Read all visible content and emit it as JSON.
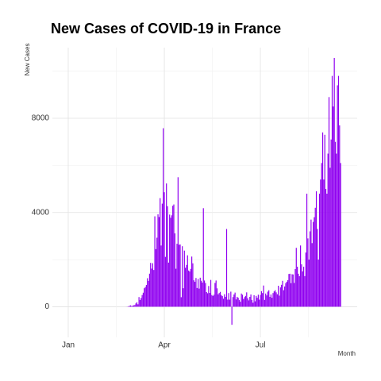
{
  "chart_data": {
    "type": "bar",
    "title": "New Cases of COVID-19 in France",
    "y_label": "New Cases",
    "x_label": "Month",
    "color": "#9000f0",
    "grid": true,
    "ylim": [
      -1300,
      11000
    ],
    "yticks": [
      0,
      4000,
      8000
    ],
    "categories": [
      "Jan",
      null,
      null,
      null,
      null,
      null,
      null,
      null,
      null,
      null,
      null,
      null,
      null,
      null,
      null,
      null,
      null,
      null,
      null,
      null,
      null,
      null,
      null,
      null,
      null,
      null,
      null,
      null,
      null,
      null,
      null,
      null,
      null,
      null,
      null,
      null,
      null,
      null,
      null,
      null,
      null,
      null,
      null,
      null,
      null,
      null,
      null,
      null,
      null,
      null,
      null,
      null,
      null,
      null,
      null,
      null,
      null,
      null,
      null,
      null,
      null,
      null,
      null,
      null,
      null,
      null,
      null,
      null,
      null,
      null,
      null,
      null,
      null,
      null,
      null,
      null,
      null,
      null,
      null,
      null,
      null,
      null,
      null,
      null,
      null,
      null,
      null,
      null,
      null,
      null,
      null,
      "Apr",
      null,
      null,
      null,
      null,
      null,
      null,
      null,
      null,
      null,
      null,
      null,
      null,
      null,
      null,
      null,
      null,
      null,
      null,
      null,
      null,
      null,
      null,
      null,
      null,
      null,
      null,
      null,
      null,
      null,
      null,
      null,
      null,
      null,
      null,
      null,
      null,
      null,
      null,
      null,
      null,
      null,
      null,
      null,
      null,
      null,
      null,
      null,
      null,
      null,
      null,
      null,
      null,
      null,
      null,
      null,
      null,
      null,
      null,
      null,
      null,
      null,
      null,
      null,
      null,
      null,
      null,
      null,
      null,
      null,
      null,
      null,
      null,
      null,
      null,
      null,
      null,
      null,
      null,
      null,
      null,
      null,
      null,
      null,
      null,
      null,
      null,
      null,
      null,
      null,
      null,
      "Jul",
      null,
      null,
      null,
      null,
      null,
      null,
      null,
      null,
      null,
      null,
      null,
      null,
      null,
      null,
      null,
      null,
      null,
      null,
      null,
      null,
      null,
      null,
      null,
      null,
      null,
      null,
      null,
      null,
      null,
      null,
      null,
      null,
      null,
      null,
      null,
      null,
      null,
      null,
      null,
      null,
      null,
      null,
      null,
      null,
      null,
      null,
      null,
      null,
      null,
      null,
      null,
      null,
      null,
      null,
      null,
      null,
      null,
      null,
      null,
      null,
      null,
      null,
      null,
      null,
      null,
      null,
      null,
      null,
      null,
      null,
      null,
      null,
      null,
      null,
      null,
      null
    ],
    "values": [
      0,
      0,
      0,
      0,
      0,
      0,
      0,
      0,
      0,
      0,
      0,
      0,
      0,
      0,
      0,
      0,
      0,
      0,
      0,
      0,
      0,
      0,
      0,
      0,
      0,
      0,
      0,
      0,
      0,
      0,
      0,
      0,
      0,
      0,
      0,
      0,
      0,
      0,
      0,
      0,
      0,
      0,
      0,
      0,
      0,
      0,
      0,
      0,
      0,
      0,
      0,
      0,
      0,
      0,
      0,
      2,
      5,
      18,
      38,
      57,
      30,
      43,
      61,
      72,
      138,
      190,
      103,
      410,
      286,
      372,
      497,
      595,
      785,
      838,
      924,
      1210,
      1097,
      1404,
      1861,
      1617,
      1847,
      1559,
      3838,
      2446,
      2931,
      3922,
      3809,
      4611,
      2599,
      4376,
      7578,
      4861,
      2116,
      5233,
      4267,
      1873,
      3912,
      3777,
      3881,
      4286,
      4342,
      3114,
      1613,
      2673,
      5497,
      2633,
      2641,
      405,
      2569,
      785,
      2383,
      1653,
      1773,
      2183,
      1537,
      1494,
      1607,
      2129,
      1843,
      1122,
      1059,
      1220,
      794,
      1176,
      768,
      1232,
      1104,
      1025,
      4183,
      1114,
      1006,
      621,
      572,
      880,
      586,
      1138,
      496,
      458,
      510,
      1010,
      1113,
      780,
      528,
      582,
      630,
      495,
      450,
      338,
      530,
      420,
      3300,
      300,
      580,
      300,
      640,
      -767,
      410,
      520,
      600,
      310,
      420,
      380,
      290,
      210,
      560,
      510,
      330,
      410,
      460,
      610,
      360,
      270,
      420,
      520,
      290,
      170,
      490,
      230,
      460,
      380,
      510,
      300,
      500,
      660,
      580,
      900,
      290,
      560,
      480,
      640,
      700,
      420,
      520,
      380,
      580,
      650,
      700,
      610,
      530,
      890,
      470,
      820,
      930,
      1100,
      700,
      860,
      1000,
      1062,
      1130,
      1390,
      1400,
      1000,
      1380,
      1370,
      1010,
      1600,
      2500,
      1700,
      1400,
      1300,
      2600,
      1800,
      1500,
      1700,
      1300,
      2300,
      4800,
      2900,
      2000,
      3200,
      3700,
      2700,
      3600,
      3800,
      4200,
      4900,
      3300,
      2000,
      4800,
      5400,
      6100,
      7400,
      5400,
      7300,
      5000,
      4800,
      6500,
      8900,
      5900,
      7100,
      9800,
      8500,
      10561,
      7000,
      6500,
      9400,
      9800,
      7700,
      6100
    ]
  }
}
